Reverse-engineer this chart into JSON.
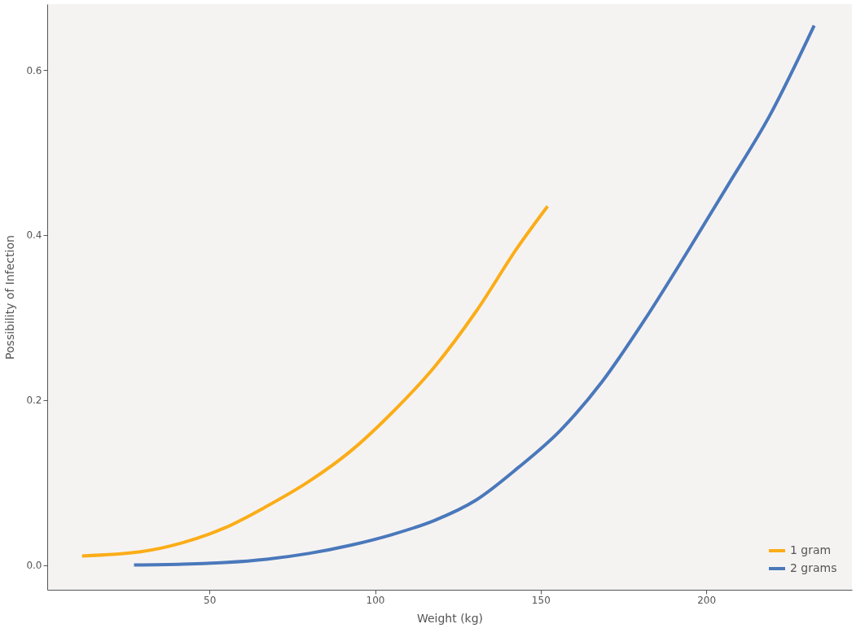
{
  "chart_data": {
    "type": "line",
    "xlabel": "Weight (kg)",
    "ylabel": "Possibility of Infection",
    "xlim": [
      1,
      244
    ],
    "ylim": [
      -0.03,
      0.68
    ],
    "xticks": [
      50,
      100,
      150,
      200
    ],
    "yticks": [
      {
        "value": 0,
        "label": "0.0"
      },
      {
        "value": 0.2,
        "label": "0.2"
      },
      {
        "value": 0.4,
        "label": "0.4"
      },
      {
        "value": 0.6,
        "label": "0.6"
      }
    ],
    "grid": false,
    "legend": "bottom right",
    "line_style": "solid",
    "marker": "none",
    "series": [
      {
        "name": "1 gram",
        "color": "#fbad18",
        "x": [
          11.5,
          29.2,
          41.9,
          54.6,
          67.2,
          79.9,
          92.6,
          105.2,
          117.9,
          130.6,
          143.2,
          152.1
        ],
        "values": [
          0.011,
          0.016,
          0.027,
          0.045,
          0.071,
          0.101,
          0.138,
          0.185,
          0.24,
          0.308,
          0.386,
          0.435
        ]
      },
      {
        "name": "2 grams",
        "color": "#4a78bb",
        "x": [
          27.2,
          41.9,
          54.6,
          67.2,
          79.9,
          92.6,
          105.2,
          117.9,
          130.6,
          143.2,
          155.9,
          168.5,
          181.2,
          193.9,
          206.5,
          219.2,
          232.6
        ],
        "values": [
          0.0,
          0.001,
          0.003,
          0.007,
          0.014,
          0.024,
          0.037,
          0.054,
          0.079,
          0.118,
          0.163,
          0.222,
          0.296,
          0.377,
          0.46,
          0.545,
          0.654
        ]
      }
    ]
  }
}
